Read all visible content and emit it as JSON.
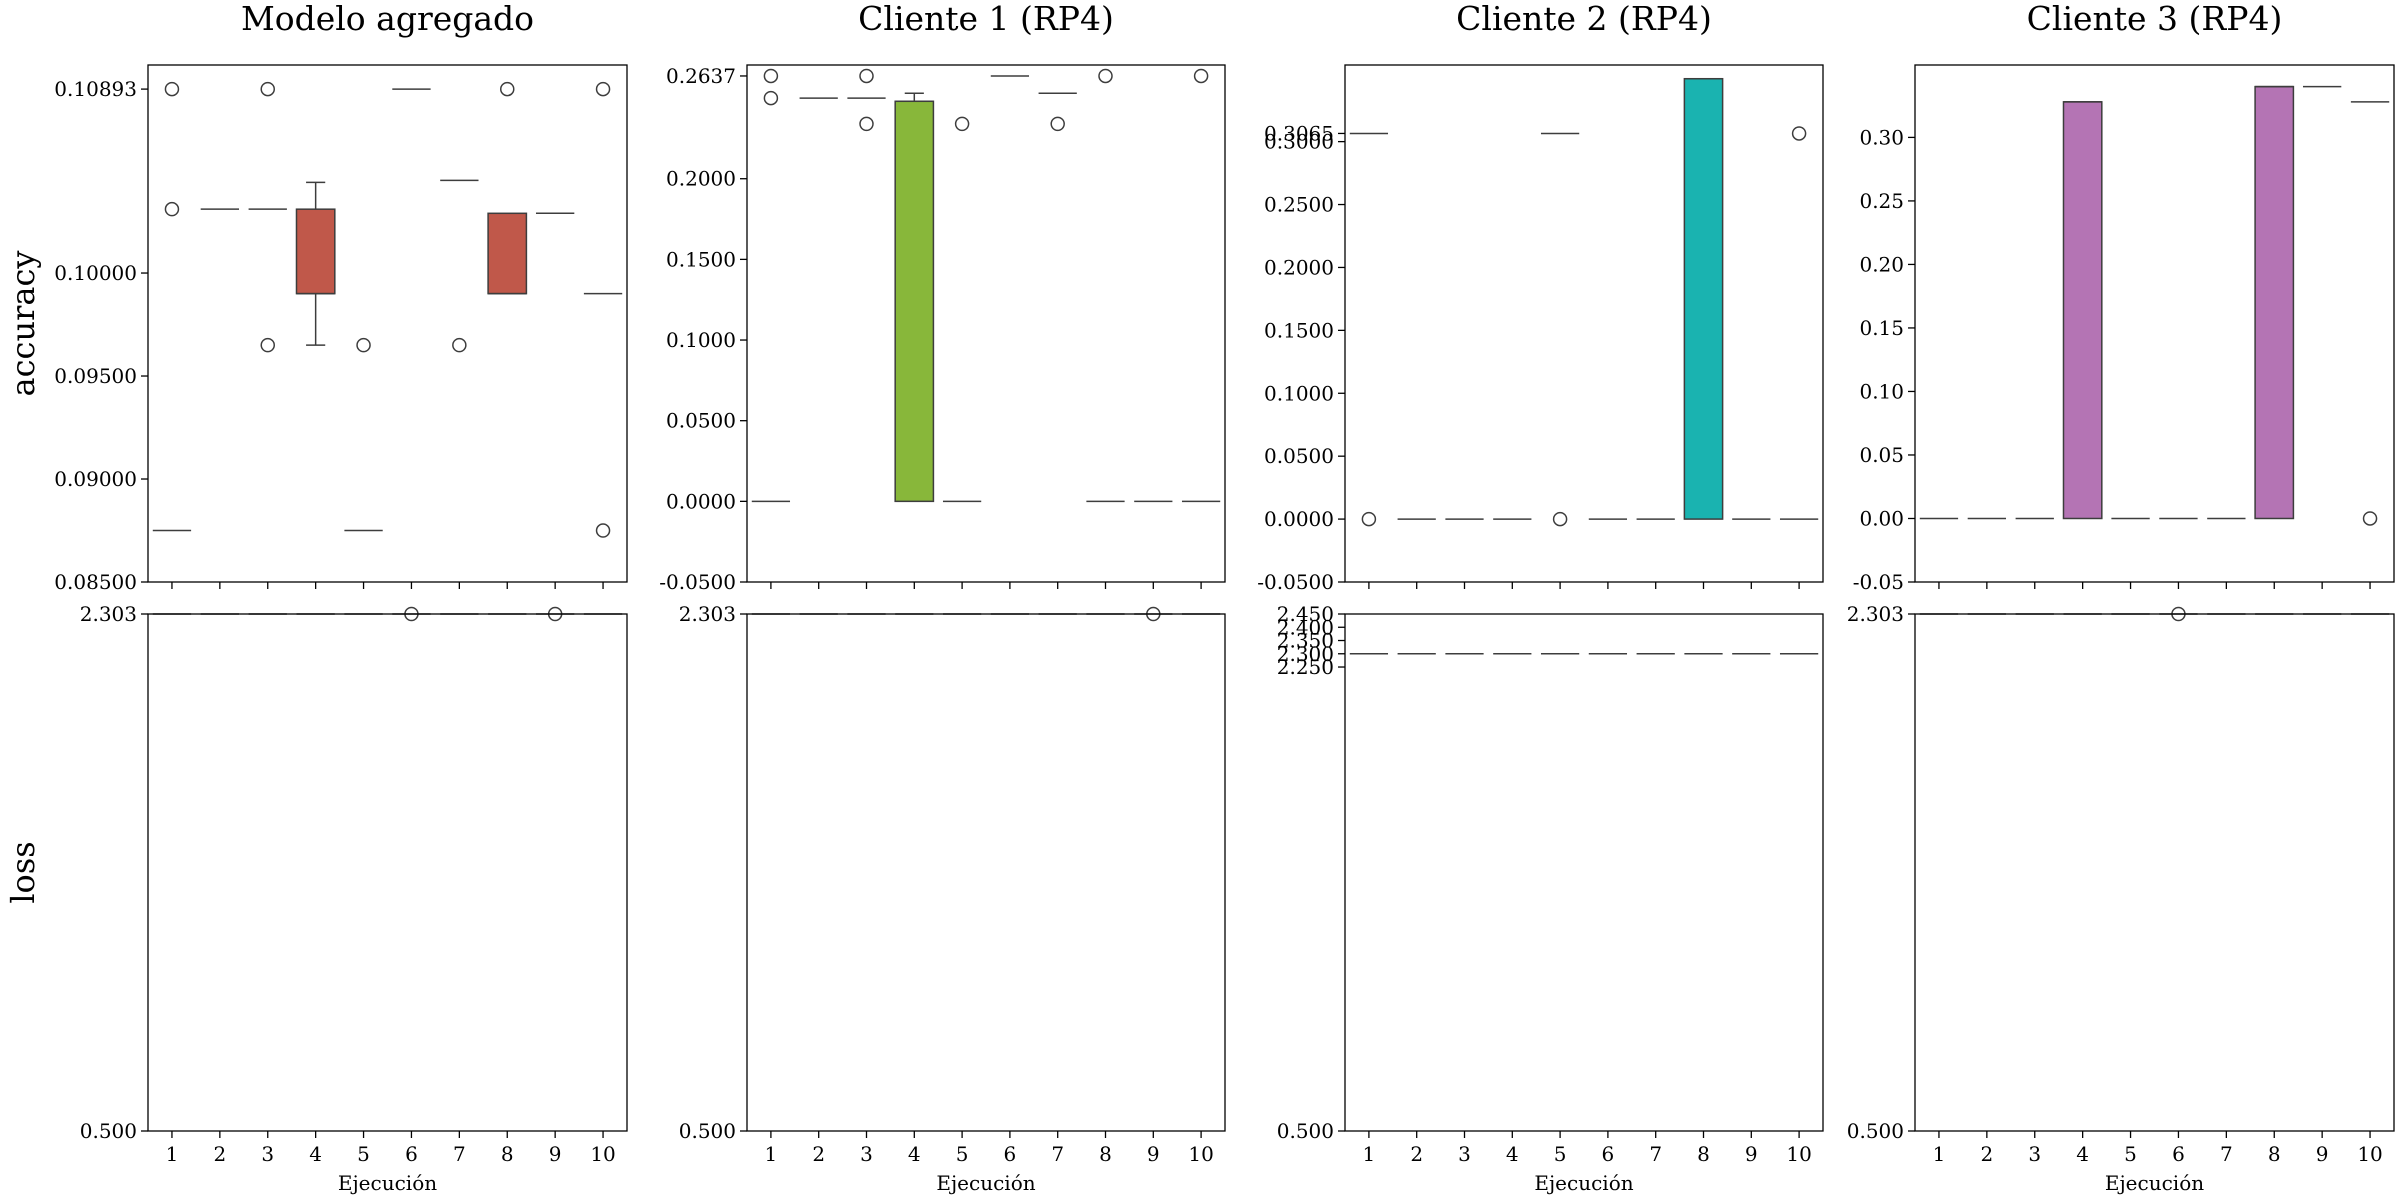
{
  "x_label": "Ejecución",
  "row_labels": [
    "accuracy",
    "loss"
  ],
  "runs": [
    "1",
    "2",
    "3",
    "4",
    "5",
    "6",
    "7",
    "8",
    "9",
    "10"
  ],
  "chart_data": [
    {
      "type": "box",
      "title": "Modelo agregado",
      "ylabel": "accuracy",
      "xlabel": "",
      "ylim": [
        0.085,
        0.1101
      ],
      "box_color": "#c0584a",
      "yticks": [
        {
          "v": 0.085,
          "label": "0.08500"
        },
        {
          "v": 0.09,
          "label": "0.09000"
        },
        {
          "v": 0.095,
          "label": "0.09500"
        },
        {
          "v": 0.1,
          "label": "0.10000"
        },
        {
          "v": 0.10893,
          "label": "0.10893"
        }
      ],
      "boxes": [
        {
          "run": "1",
          "median": 0.0875,
          "outliers": [
            0.10893,
            0.1031
          ]
        },
        {
          "run": "2",
          "median": 0.1031
        },
        {
          "run": "3",
          "median": 0.1031,
          "outliers": [
            0.10893,
            0.0965
          ]
        },
        {
          "run": "4",
          "q1": 0.099,
          "q3": 0.1031,
          "median": 0.099,
          "wlow": 0.0965,
          "whigh": 0.1044
        },
        {
          "run": "5",
          "median": 0.0875,
          "outliers": [
            0.0965
          ]
        },
        {
          "run": "6",
          "median": 0.10893
        },
        {
          "run": "7",
          "median": 0.1045,
          "outliers": [
            0.0965
          ]
        },
        {
          "run": "8",
          "q1": 0.099,
          "q3": 0.1029,
          "median": 0.099,
          "outliers": [
            0.10893
          ]
        },
        {
          "run": "9",
          "median": 0.1029
        },
        {
          "run": "10",
          "median": 0.099,
          "outliers": [
            0.10893,
            0.0875
          ]
        }
      ]
    },
    {
      "type": "box",
      "title": "Cliente 1 (RP4)",
      "ylabel": "",
      "xlabel": "",
      "ylim": [
        -0.05,
        0.2705
      ],
      "box_color": "#88b73a",
      "yticks": [
        {
          "v": -0.05,
          "label": "-0.0500"
        },
        {
          "v": 0,
          "label": "0.0000"
        },
        {
          "v": 0.05,
          "label": "0.0500"
        },
        {
          "v": 0.1,
          "label": "0.1000"
        },
        {
          "v": 0.15,
          "label": "0.1500"
        },
        {
          "v": 0.2,
          "label": "0.2000"
        },
        {
          "v": 0.2637,
          "label": "0.2637"
        }
      ],
      "boxes": [
        {
          "run": "1",
          "median": 0.0,
          "outliers": [
            0.2637,
            0.25
          ]
        },
        {
          "run": "2",
          "median": 0.25
        },
        {
          "run": "3",
          "median": 0.25,
          "outliers": [
            0.2637,
            0.234
          ]
        },
        {
          "run": "4",
          "q1": 0.0,
          "q3": 0.248,
          "median": 0.248,
          "whigh": 0.253
        },
        {
          "run": "5",
          "median": 0.0,
          "outliers": [
            0.234
          ]
        },
        {
          "run": "6",
          "median": 0.2637
        },
        {
          "run": "7",
          "median": 0.253,
          "outliers": [
            0.234
          ]
        },
        {
          "run": "8",
          "median": 0.0,
          "outliers": [
            0.2637
          ]
        },
        {
          "run": "9",
          "median": 0.0
        },
        {
          "run": "10",
          "median": 0.0,
          "outliers": [
            0.2637
          ]
        }
      ]
    },
    {
      "type": "box",
      "title": "Cliente 2 (RP4)",
      "ylabel": "",
      "xlabel": "",
      "ylim": [
        -0.05,
        0.3609
      ],
      "box_color": "#1ab3b0",
      "yticks": [
        {
          "v": -0.05,
          "label": "-0.0500"
        },
        {
          "v": 0,
          "label": "0.0000"
        },
        {
          "v": 0.05,
          "label": "0.0500"
        },
        {
          "v": 0.1,
          "label": "0.1000"
        },
        {
          "v": 0.15,
          "label": "0.1500"
        },
        {
          "v": 0.2,
          "label": "0.2000"
        },
        {
          "v": 0.25,
          "label": "0.2500"
        },
        {
          "v": 0.3,
          "label": "0.3000"
        },
        {
          "v": 0.3065,
          "label": "0.3065"
        }
      ],
      "boxes": [
        {
          "run": "1",
          "median": 0.3065,
          "outliers": [
            0.0
          ]
        },
        {
          "run": "2",
          "median": 0.0
        },
        {
          "run": "3",
          "median": 0.0
        },
        {
          "run": "4",
          "median": 0.0
        },
        {
          "run": "5",
          "median": 0.3065,
          "outliers": [
            0.0
          ]
        },
        {
          "run": "6",
          "median": 0.0
        },
        {
          "run": "7",
          "median": 0.0
        },
        {
          "run": "8",
          "q1": 0.0,
          "q3": 0.35,
          "median": 0.35
        },
        {
          "run": "9",
          "median": 0.0
        },
        {
          "run": "10",
          "median": 0.0,
          "outliers": [
            0.3065
          ]
        }
      ]
    },
    {
      "type": "box",
      "title": "Cliente 3 (RP4)",
      "ylabel": "",
      "xlabel": "",
      "ylim": [
        -0.05,
        0.357
      ],
      "box_color": "#b474b4",
      "yticks": [
        {
          "v": -0.05,
          "label": "-0.05"
        },
        {
          "v": 0,
          "label": "0.00"
        },
        {
          "v": 0.05,
          "label": "0.05"
        },
        {
          "v": 0.1,
          "label": "0.10"
        },
        {
          "v": 0.15,
          "label": "0.15"
        },
        {
          "v": 0.2,
          "label": "0.20"
        },
        {
          "v": 0.25,
          "label": "0.25"
        },
        {
          "v": 0.3,
          "label": "0.30"
        }
      ],
      "boxes": [
        {
          "run": "1",
          "median": 0.0
        },
        {
          "run": "2",
          "median": 0.0
        },
        {
          "run": "3",
          "median": 0.0
        },
        {
          "run": "4",
          "q1": 0.0,
          "q3": 0.328,
          "median": 0.328
        },
        {
          "run": "5",
          "median": 0.0
        },
        {
          "run": "6",
          "median": 0.0
        },
        {
          "run": "7",
          "median": 0.0
        },
        {
          "run": "8",
          "q1": 0.0,
          "q3": 0.34,
          "median": 0.34
        },
        {
          "run": "9",
          "median": 0.34
        },
        {
          "run": "10",
          "median": 0.328,
          "outliers": [
            0.0
          ]
        }
      ]
    },
    {
      "type": "box",
      "title": "",
      "ylabel": "loss",
      "xlabel": "Ejecución",
      "ylim": [
        0.5,
        2.303
      ],
      "box_color": "#c0584a",
      "yticks": [
        {
          "v": 0.5,
          "label": "0.500"
        },
        {
          "v": 2.303,
          "label": "2.303"
        }
      ],
      "boxes": [
        {
          "run": "1",
          "median": 2.303
        },
        {
          "run": "2",
          "median": 2.303
        },
        {
          "run": "3",
          "median": 2.303
        },
        {
          "run": "4",
          "median": 2.303
        },
        {
          "run": "5",
          "median": 2.303
        },
        {
          "run": "6",
          "median": 2.303,
          "outliers": [
            2.303
          ]
        },
        {
          "run": "7",
          "median": 2.303
        },
        {
          "run": "8",
          "median": 2.303
        },
        {
          "run": "9",
          "median": 2.303,
          "outliers": [
            2.303
          ]
        },
        {
          "run": "10",
          "median": 2.303
        }
      ]
    },
    {
      "type": "box",
      "title": "",
      "ylabel": "",
      "xlabel": "Ejecución",
      "ylim": [
        0.5,
        2.303
      ],
      "box_color": "#88b73a",
      "yticks": [
        {
          "v": 0.5,
          "label": "0.500"
        },
        {
          "v": 2.303,
          "label": "2.303"
        }
      ],
      "boxes": [
        {
          "run": "1",
          "median": 2.303
        },
        {
          "run": "2",
          "median": 2.303
        },
        {
          "run": "3",
          "median": 2.303
        },
        {
          "run": "4",
          "median": 2.303
        },
        {
          "run": "5",
          "median": 2.303
        },
        {
          "run": "6",
          "median": 2.303
        },
        {
          "run": "7",
          "median": 2.303
        },
        {
          "run": "8",
          "median": 2.303
        },
        {
          "run": "9",
          "median": 2.303,
          "outliers": [
            2.303
          ]
        },
        {
          "run": "10",
          "median": 2.303
        }
      ]
    },
    {
      "type": "box",
      "title": "",
      "ylabel": "",
      "xlabel": "Ejecución",
      "ylim": [
        0.5,
        2.45
      ],
      "box_color": "#1ab3b0",
      "yticks": [
        {
          "v": 0.5,
          "label": "0.500"
        },
        {
          "v": 2.25,
          "label": "2.250"
        },
        {
          "v": 2.3,
          "label": "2.300"
        },
        {
          "v": 2.35,
          "label": "2.350"
        },
        {
          "v": 2.4,
          "label": "2.400"
        },
        {
          "v": 2.45,
          "label": "2.450"
        }
      ],
      "boxes": [
        {
          "run": "1",
          "median": 2.3
        },
        {
          "run": "2",
          "median": 2.3
        },
        {
          "run": "3",
          "median": 2.3
        },
        {
          "run": "4",
          "median": 2.3
        },
        {
          "run": "5",
          "median": 2.3
        },
        {
          "run": "6",
          "median": 2.3
        },
        {
          "run": "7",
          "median": 2.3
        },
        {
          "run": "8",
          "median": 2.3
        },
        {
          "run": "9",
          "median": 2.3
        },
        {
          "run": "10",
          "median": 2.3
        }
      ]
    },
    {
      "type": "box",
      "title": "",
      "ylabel": "",
      "xlabel": "Ejecución",
      "ylim": [
        0.5,
        2.303
      ],
      "box_color": "#b474b4",
      "yticks": [
        {
          "v": 0.5,
          "label": "0.500"
        },
        {
          "v": 2.303,
          "label": "2.303"
        }
      ],
      "boxes": [
        {
          "run": "1",
          "median": 2.303
        },
        {
          "run": "2",
          "median": 2.303
        },
        {
          "run": "3",
          "median": 2.303
        },
        {
          "run": "4",
          "median": 2.303
        },
        {
          "run": "5",
          "median": 2.303
        },
        {
          "run": "6",
          "median": 2.303,
          "outliers": [
            2.303
          ]
        },
        {
          "run": "7",
          "median": 2.303
        },
        {
          "run": "8",
          "median": 2.303
        },
        {
          "run": "9",
          "median": 2.303
        },
        {
          "run": "10",
          "median": 2.303
        }
      ]
    }
  ]
}
